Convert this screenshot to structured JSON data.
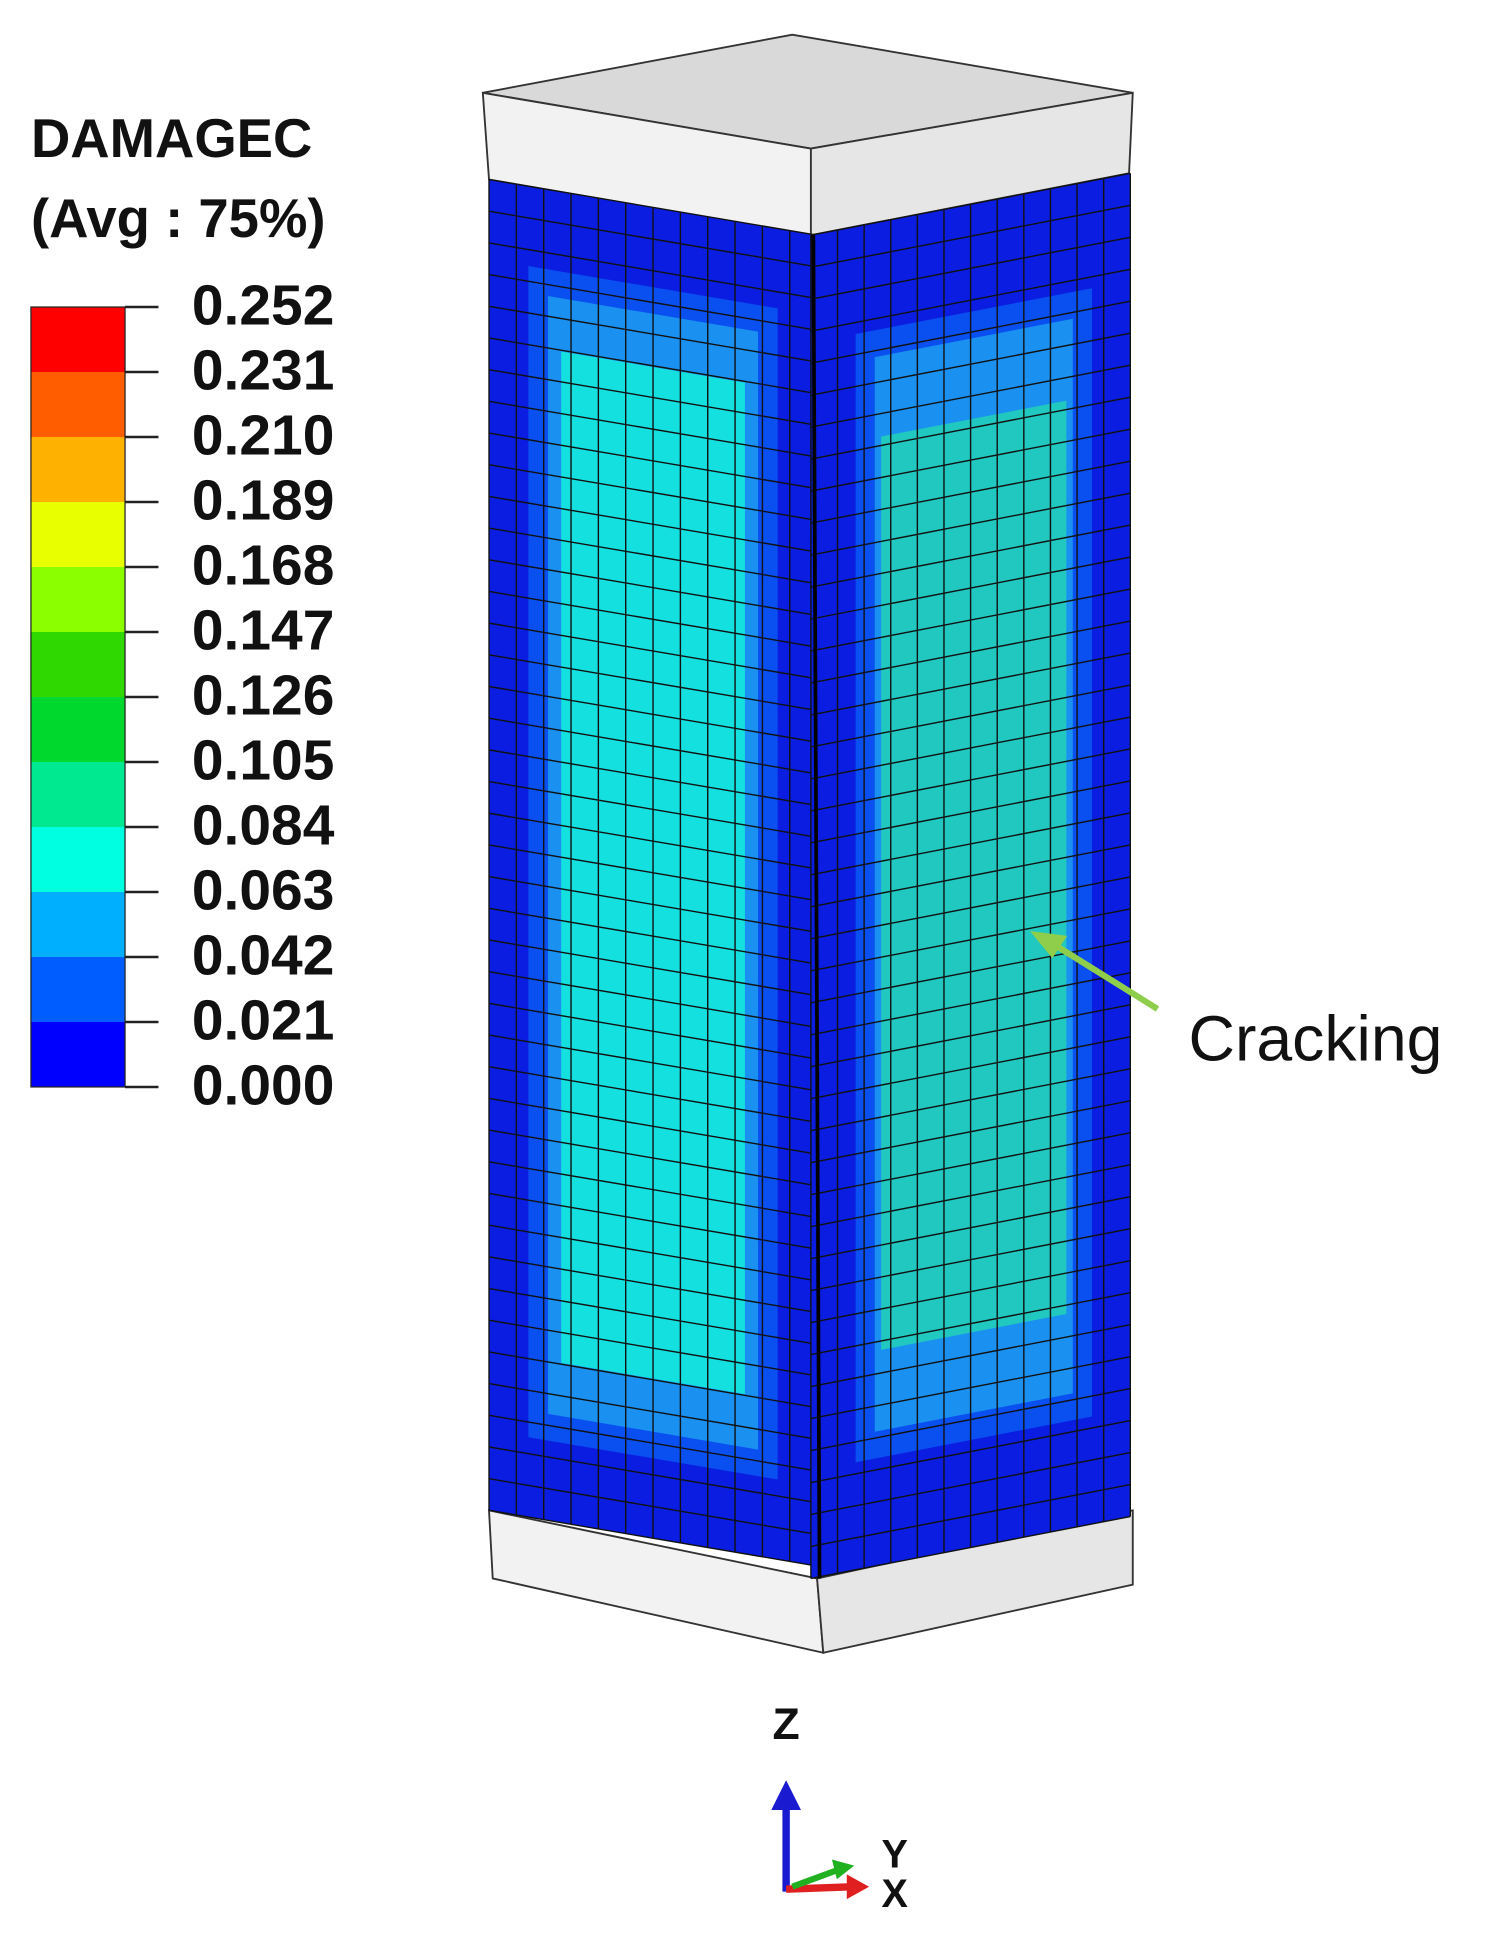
{
  "legend": {
    "title": "DAMAGEC",
    "subtitle": "(Avg : 75%)",
    "levels": [
      "0.252",
      "0.231",
      "0.210",
      "0.189",
      "0.168",
      "0.147",
      "0.126",
      "0.105",
      "0.084",
      "0.063",
      "0.042",
      "0.021",
      "0.000"
    ]
  },
  "annotation": "Cracking",
  "triad": {
    "z": "Z",
    "y": "Y",
    "x": "X"
  }
}
